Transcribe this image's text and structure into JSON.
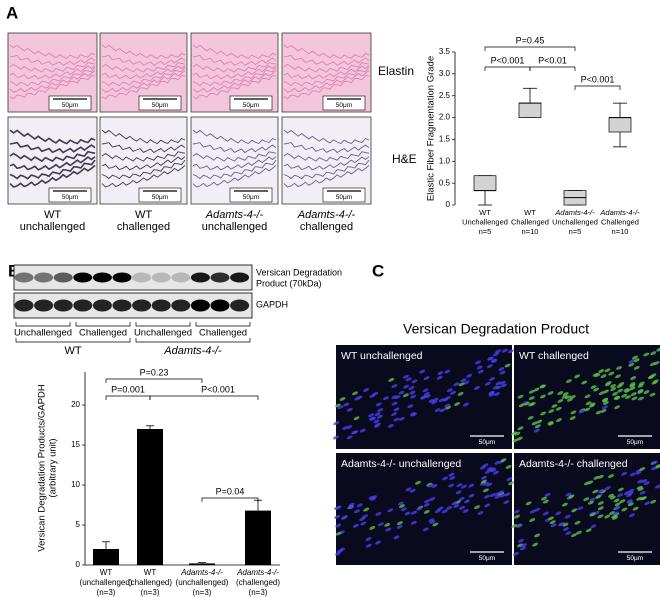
{
  "panel_labels": [
    "A",
    "B",
    "C"
  ],
  "panel_a": {
    "stain_labels": [
      "Elastin",
      "H&E"
    ],
    "scale_bar": "50μm",
    "columns": [
      [
        "WT",
        "unchallenged"
      ],
      [
        "WT",
        "challenged"
      ],
      [
        "Adamts-4-/-",
        "unchallenged"
      ],
      [
        "Adamts-4-/-",
        "challenged"
      ]
    ]
  },
  "panel_b": {
    "blot_labels": [
      [
        "Versican Degradation",
        "Product (70kDa)"
      ],
      [
        "GAPDH"
      ]
    ],
    "conditions": [
      "Unchallenged",
      "Challenged",
      "Unchallenged",
      "Challenged"
    ],
    "groups": [
      "WT",
      "Adamts-4-/-"
    ]
  },
  "panel_c": {
    "title": "Versican Degradation Product",
    "scale_bar": "50μm",
    "images": [
      "WT unchallenged",
      "WT challenged",
      "Adamts-4-/- unchallenged",
      "Adamts-4-/- challenged"
    ]
  },
  "chart_data": [
    {
      "type": "box",
      "y_label": "Elastic Fiber Fragmentation Grade",
      "categories": [
        [
          "WT",
          "Unchallenged",
          "n=5"
        ],
        [
          "WT",
          "Challenged",
          "n=10"
        ],
        [
          "Adamts-4-/-",
          "Unchallenged",
          "n=5"
        ],
        [
          "Adamts-4-/-",
          "Challenged",
          "n=10"
        ]
      ],
      "min": [
        0,
        2.0,
        0,
        1.33
      ],
      "q1": [
        0.33,
        2.0,
        0,
        1.67
      ],
      "median": [
        0.33,
        2.33,
        0.17,
        2.0
      ],
      "q3": [
        0.67,
        2.33,
        0.33,
        2.0
      ],
      "max": [
        0.67,
        2.67,
        0.33,
        2.33
      ],
      "color": "#d3d3d3",
      "ylim": [
        0,
        3.5
      ],
      "yticks": [
        0,
        0.5,
        {
          "value": 1,
          "label": "1.0"
        },
        1.5,
        {
          "value": 2,
          "label": "2.0"
        },
        2.5,
        {
          "value": 3,
          "label": "3.0"
        },
        3.5
      ],
      "annotations": [
        "P=0.45",
        "P<0.001",
        "P<0.01",
        "P<0.001"
      ]
    },
    {
      "type": "bar",
      "y_label": [
        "Versican Degradation Products/GAPDH",
        "(arbitrary unit)"
      ],
      "categories": [
        [
          "WT",
          "(unchallenged)",
          "(n=3)"
        ],
        [
          "WT",
          "(challenged)",
          "(n=3)"
        ],
        [
          "Adamts-4-/-",
          "(unchallenged)",
          "(n=3)"
        ],
        [
          "Adamts-4-/-",
          "(challenged)",
          "(n=3)"
        ]
      ],
      "values": [
        2,
        17,
        0.2,
        6.8
      ],
      "errors": [
        0.9,
        0.4,
        0.1,
        1.3
      ],
      "color": "#000000",
      "ylim": [
        0,
        20
      ],
      "yticks": [
        0,
        5,
        10,
        15,
        20
      ],
      "annotations": [
        "P=0.23",
        "P=0.001",
        "P<0.001",
        "P=0.04"
      ]
    }
  ]
}
